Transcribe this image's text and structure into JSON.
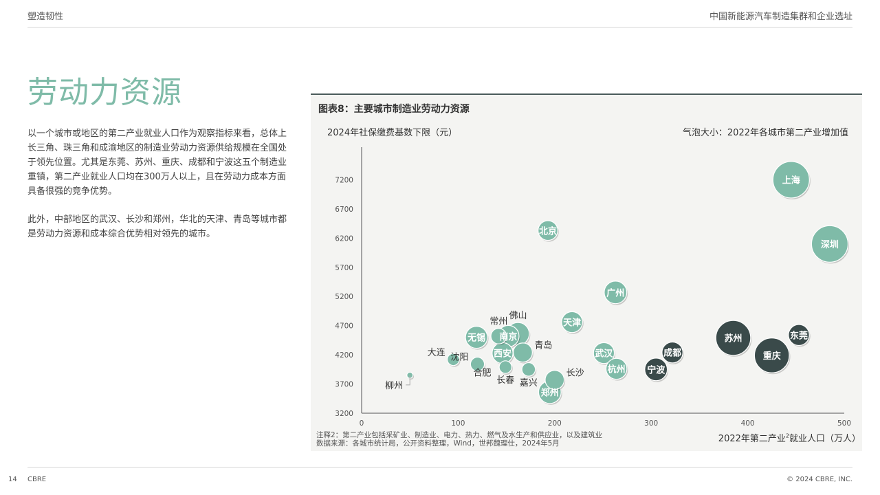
{
  "header": {
    "section": "塑造韧性",
    "report_title": "中国新能源汽车制造集群和企业选址"
  },
  "page": {
    "title": "劳动力资源",
    "paragraphs": [
      "以一个城市或地区的第二产业就业人口作为观察指标来看，总体上长三角、珠三角和成渝地区的制造业劳动力资源供给规模在全国处于领先位置。尤其是东莞、苏州、重庆、成都和宁波这五个制造业重镇，第二产业就业人口均在300万人以上，且在劳动力成本方面具备很强的竞争优势。",
      "此外，中部地区的武汉、长沙和郑州，华北的天津、青岛等城市都是劳动力资源和成本综合优势相对领先的城市。"
    ]
  },
  "chart_data": {
    "type": "scatter",
    "title": "图表8：主要城市制造业劳动力资源",
    "ylabel": "2024年社保缴费基数下限（元）",
    "xlabel_pre": "2022年第二产业",
    "xlabel_sup": "2",
    "xlabel_post": "就业人口（万人）",
    "bubble_note": "气泡大小：2022年各城市第二产业增加值",
    "xlim": [
      0,
      500
    ],
    "ylim": [
      3200,
      7500
    ],
    "x_ticks": [
      0,
      100,
      200,
      300,
      400,
      500
    ],
    "y_ticks": [
      3200,
      3700,
      4200,
      4700,
      5200,
      5700,
      6200,
      6700,
      7200
    ],
    "colors": {
      "light": "#7fbba8",
      "dark": "#3a4a4a"
    },
    "points": [
      {
        "name": "上海",
        "x": 445,
        "y": 7200,
        "size": 11.0,
        "group": "light",
        "label": "inside"
      },
      {
        "name": "深圳",
        "x": 485,
        "y": 6100,
        "size": 11.0,
        "group": "light",
        "label": "inside"
      },
      {
        "name": "北京",
        "x": 193,
        "y": 6330,
        "size": 3.2,
        "group": "light",
        "label": "inside"
      },
      {
        "name": "广州",
        "x": 263,
        "y": 5270,
        "size": 4.2,
        "group": "light",
        "label": "inside"
      },
      {
        "name": "天津",
        "x": 218,
        "y": 4760,
        "size": 3.6,
        "group": "light",
        "label": "inside"
      },
      {
        "name": "苏州",
        "x": 385,
        "y": 4490,
        "size": 10.0,
        "group": "dark",
        "label": "inside"
      },
      {
        "name": "重庆",
        "x": 425,
        "y": 4190,
        "size": 10.0,
        "group": "dark",
        "label": "inside"
      },
      {
        "name": "东莞",
        "x": 453,
        "y": 4540,
        "size": 3.6,
        "group": "dark",
        "label": "inside"
      },
      {
        "name": "成都",
        "x": 322,
        "y": 4240,
        "size": 3.6,
        "group": "dark",
        "label": "inside"
      },
      {
        "name": "宁波",
        "x": 305,
        "y": 3950,
        "size": 4.2,
        "group": "dark",
        "label": "inside"
      },
      {
        "name": "武汉",
        "x": 251,
        "y": 4230,
        "size": 3.6,
        "group": "light",
        "label": "inside"
      },
      {
        "name": "杭州",
        "x": 264,
        "y": 3960,
        "size": 3.6,
        "group": "light",
        "label": "inside"
      },
      {
        "name": "郑州",
        "x": 195,
        "y": 3560,
        "size": 4.2,
        "group": "light",
        "label": "inside"
      },
      {
        "name": "长沙",
        "x": 200,
        "y": 3770,
        "size": 3.0,
        "group": "light",
        "label": "right"
      },
      {
        "name": "嘉兴",
        "x": 173,
        "y": 3950,
        "size": 1.5,
        "group": "light",
        "label": "below"
      },
      {
        "name": "青岛",
        "x": 167,
        "y": 4240,
        "size": 3.0,
        "group": "light",
        "label": "right"
      },
      {
        "name": "佛山",
        "x": 162,
        "y": 4560,
        "size": 4.2,
        "group": "light",
        "label": "above"
      },
      {
        "name": "南京",
        "x": 152,
        "y": 4520,
        "size": 3.8,
        "group": "light",
        "label": "inside"
      },
      {
        "name": "常州",
        "x": 142,
        "y": 4520,
        "size": 2.0,
        "group": "light",
        "label": "above"
      },
      {
        "name": "无锡",
        "x": 119,
        "y": 4500,
        "size": 4.0,
        "group": "light",
        "label": "inside"
      },
      {
        "name": "西安",
        "x": 146,
        "y": 4230,
        "size": 3.6,
        "group": "light",
        "label": "inside"
      },
      {
        "name": "长春",
        "x": 149,
        "y": 3990,
        "size": 1.3,
        "group": "light",
        "label": "below"
      },
      {
        "name": "沈阳",
        "x": 120,
        "y": 4040,
        "size": 1.6,
        "group": "light",
        "label": "left"
      },
      {
        "name": "大连",
        "x": 95,
        "y": 4120,
        "size": 1.2,
        "group": "light",
        "label": "left"
      },
      {
        "name": "合肥",
        "x": 125,
        "y": 3900,
        "size": 0.1,
        "group": "light",
        "label": "text"
      },
      {
        "name": "柳州",
        "x": 50,
        "y": 3850,
        "size": 0.3,
        "group": "light",
        "label": "callout"
      }
    ]
  },
  "notes": {
    "note": "注释2：第二产业包括采矿业、制造业、电力、热力、燃气及水生产和供应业，以及建筑业",
    "source": "数据来源：各城市统计局，公开资料整理，Wind，世邦魏理仕，2024年5月"
  },
  "footer": {
    "page_number": "14",
    "brand": "CBRE",
    "copyright": "© 2024 CBRE, INC."
  }
}
